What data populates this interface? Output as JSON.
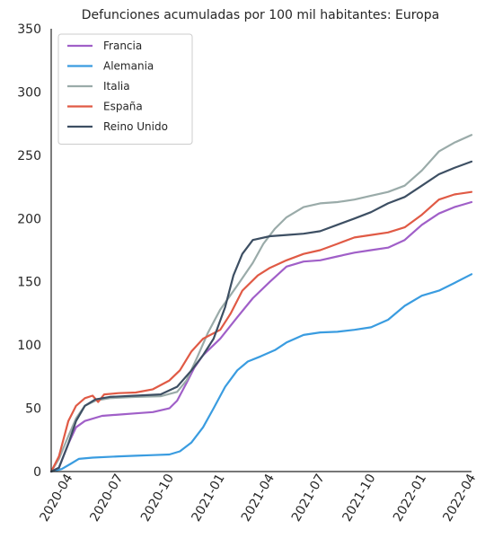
{
  "chart_data": {
    "type": "line",
    "title": "Defunciones acumuladas por 100 mil habitantes: Europa",
    "xlabel": "",
    "ylabel": "",
    "ylim": [
      0,
      350
    ],
    "xlim": [
      "2020-03-01",
      "2022-04-01"
    ],
    "yticks": [
      0,
      50,
      100,
      150,
      200,
      250,
      300,
      350
    ],
    "xticks": [
      "2020-04",
      "2020-07",
      "2020-10",
      "2021-01",
      "2021-04",
      "2021-07",
      "2021-10",
      "2022-01",
      "2022-04"
    ],
    "grid": false,
    "legend_position": "top-left",
    "series": [
      {
        "name": "Francia",
        "color": "#a05fc8",
        "points": [
          [
            "2020-03-01",
            0
          ],
          [
            "2020-03-15",
            3
          ],
          [
            "2020-04-01",
            22
          ],
          [
            "2020-04-15",
            35
          ],
          [
            "2020-05-01",
            40
          ],
          [
            "2020-06-01",
            44
          ],
          [
            "2020-07-01",
            45
          ],
          [
            "2020-08-01",
            46
          ],
          [
            "2020-09-01",
            47
          ],
          [
            "2020-10-01",
            50
          ],
          [
            "2020-10-15",
            56
          ],
          [
            "2020-11-01",
            70
          ],
          [
            "2020-11-15",
            82
          ],
          [
            "2020-12-01",
            92
          ],
          [
            "2021-01-01",
            105
          ],
          [
            "2021-02-01",
            122
          ],
          [
            "2021-03-01",
            137
          ],
          [
            "2021-04-01",
            150
          ],
          [
            "2021-05-01",
            162
          ],
          [
            "2021-06-01",
            166
          ],
          [
            "2021-07-01",
            167
          ],
          [
            "2021-08-01",
            170
          ],
          [
            "2021-09-01",
            173
          ],
          [
            "2021-10-01",
            175
          ],
          [
            "2021-11-01",
            177
          ],
          [
            "2021-12-01",
            183
          ],
          [
            "2022-01-01",
            195
          ],
          [
            "2022-02-01",
            204
          ],
          [
            "2022-03-01",
            209
          ],
          [
            "2022-04-01",
            213
          ]
        ]
      },
      {
        "name": "Alemania",
        "color": "#3a9ce0",
        "points": [
          [
            "2020-03-01",
            0
          ],
          [
            "2020-03-20",
            2
          ],
          [
            "2020-04-05",
            6
          ],
          [
            "2020-04-20",
            10
          ],
          [
            "2020-05-15",
            11
          ],
          [
            "2020-07-01",
            12
          ],
          [
            "2020-08-01",
            12.5
          ],
          [
            "2020-09-01",
            13
          ],
          [
            "2020-10-01",
            13.5
          ],
          [
            "2020-10-20",
            16
          ],
          [
            "2020-11-10",
            23
          ],
          [
            "2020-12-01",
            35
          ],
          [
            "2020-12-20",
            50
          ],
          [
            "2021-01-10",
            67
          ],
          [
            "2021-02-01",
            80
          ],
          [
            "2021-02-20",
            87
          ],
          [
            "2021-03-15",
            91
          ],
          [
            "2021-04-10",
            96
          ],
          [
            "2021-05-01",
            102
          ],
          [
            "2021-06-01",
            108
          ],
          [
            "2021-07-01",
            110
          ],
          [
            "2021-08-01",
            110.5
          ],
          [
            "2021-09-01",
            112
          ],
          [
            "2021-10-01",
            114
          ],
          [
            "2021-11-01",
            120
          ],
          [
            "2021-12-01",
            131
          ],
          [
            "2022-01-01",
            139
          ],
          [
            "2022-02-01",
            143
          ],
          [
            "2022-03-01",
            149
          ],
          [
            "2022-04-01",
            156
          ]
        ]
      },
      {
        "name": "Italia",
        "color": "#9aaba9",
        "points": [
          [
            "2020-03-01",
            0
          ],
          [
            "2020-03-15",
            10
          ],
          [
            "2020-04-01",
            28
          ],
          [
            "2020-04-15",
            42
          ],
          [
            "2020-05-01",
            52
          ],
          [
            "2020-05-20",
            56
          ],
          [
            "2020-06-15",
            58
          ],
          [
            "2020-08-01",
            59
          ],
          [
            "2020-09-15",
            59.5
          ],
          [
            "2020-10-15",
            63
          ],
          [
            "2020-11-01",
            72
          ],
          [
            "2020-11-20",
            90
          ],
          [
            "2020-12-10",
            110
          ],
          [
            "2021-01-01",
            128
          ],
          [
            "2021-02-01",
            147
          ],
          [
            "2021-03-01",
            165
          ],
          [
            "2021-03-20",
            180
          ],
          [
            "2021-04-10",
            192
          ],
          [
            "2021-05-01",
            201
          ],
          [
            "2021-06-01",
            209
          ],
          [
            "2021-07-01",
            212
          ],
          [
            "2021-08-01",
            213
          ],
          [
            "2021-09-01",
            215
          ],
          [
            "2021-10-01",
            218
          ],
          [
            "2021-11-01",
            221
          ],
          [
            "2021-12-01",
            226
          ],
          [
            "2022-01-01",
            238
          ],
          [
            "2022-02-01",
            253
          ],
          [
            "2022-03-01",
            260
          ],
          [
            "2022-04-01",
            266
          ]
        ]
      },
      {
        "name": "España",
        "color": "#e05a45",
        "points": [
          [
            "2020-03-01",
            0
          ],
          [
            "2020-03-15",
            12
          ],
          [
            "2020-04-01",
            40
          ],
          [
            "2020-04-15",
            52
          ],
          [
            "2020-05-01",
            58
          ],
          [
            "2020-05-15",
            60
          ],
          [
            "2020-05-25",
            55
          ],
          [
            "2020-06-05",
            61
          ],
          [
            "2020-07-01",
            62
          ],
          [
            "2020-08-01",
            62.5
          ],
          [
            "2020-09-01",
            65
          ],
          [
            "2020-10-01",
            72
          ],
          [
            "2020-10-20",
            80
          ],
          [
            "2020-11-10",
            95
          ],
          [
            "2020-12-01",
            105
          ],
          [
            "2021-01-01",
            112
          ],
          [
            "2021-01-20",
            125
          ],
          [
            "2021-02-10",
            143
          ],
          [
            "2021-03-10",
            155
          ],
          [
            "2021-04-01",
            161
          ],
          [
            "2021-05-01",
            167
          ],
          [
            "2021-06-01",
            172
          ],
          [
            "2021-07-01",
            175
          ],
          [
            "2021-08-01",
            180
          ],
          [
            "2021-09-01",
            185
          ],
          [
            "2021-10-01",
            187
          ],
          [
            "2021-11-01",
            189
          ],
          [
            "2021-12-01",
            193
          ],
          [
            "2022-01-01",
            203
          ],
          [
            "2022-02-01",
            215
          ],
          [
            "2022-03-01",
            219
          ],
          [
            "2022-04-01",
            221
          ]
        ]
      },
      {
        "name": "Reino Unido",
        "color": "#3d4f63",
        "points": [
          [
            "2020-03-01",
            0
          ],
          [
            "2020-03-15",
            3
          ],
          [
            "2020-04-01",
            22
          ],
          [
            "2020-04-15",
            40
          ],
          [
            "2020-05-01",
            52
          ],
          [
            "2020-05-20",
            57
          ],
          [
            "2020-06-15",
            59
          ],
          [
            "2020-08-01",
            60
          ],
          [
            "2020-09-15",
            61
          ],
          [
            "2020-10-15",
            67
          ],
          [
            "2020-11-10",
            80
          ],
          [
            "2020-12-01",
            92
          ],
          [
            "2020-12-20",
            105
          ],
          [
            "2021-01-10",
            130
          ],
          [
            "2021-01-25",
            155
          ],
          [
            "2021-02-10",
            172
          ],
          [
            "2021-03-01",
            183
          ],
          [
            "2021-04-01",
            186
          ],
          [
            "2021-05-01",
            187
          ],
          [
            "2021-06-01",
            188
          ],
          [
            "2021-07-01",
            190
          ],
          [
            "2021-08-01",
            195
          ],
          [
            "2021-09-01",
            200
          ],
          [
            "2021-10-01",
            205
          ],
          [
            "2021-11-01",
            212
          ],
          [
            "2021-12-01",
            217
          ],
          [
            "2022-01-01",
            226
          ],
          [
            "2022-02-01",
            235
          ],
          [
            "2022-03-01",
            240
          ],
          [
            "2022-04-01",
            245
          ]
        ]
      }
    ]
  }
}
